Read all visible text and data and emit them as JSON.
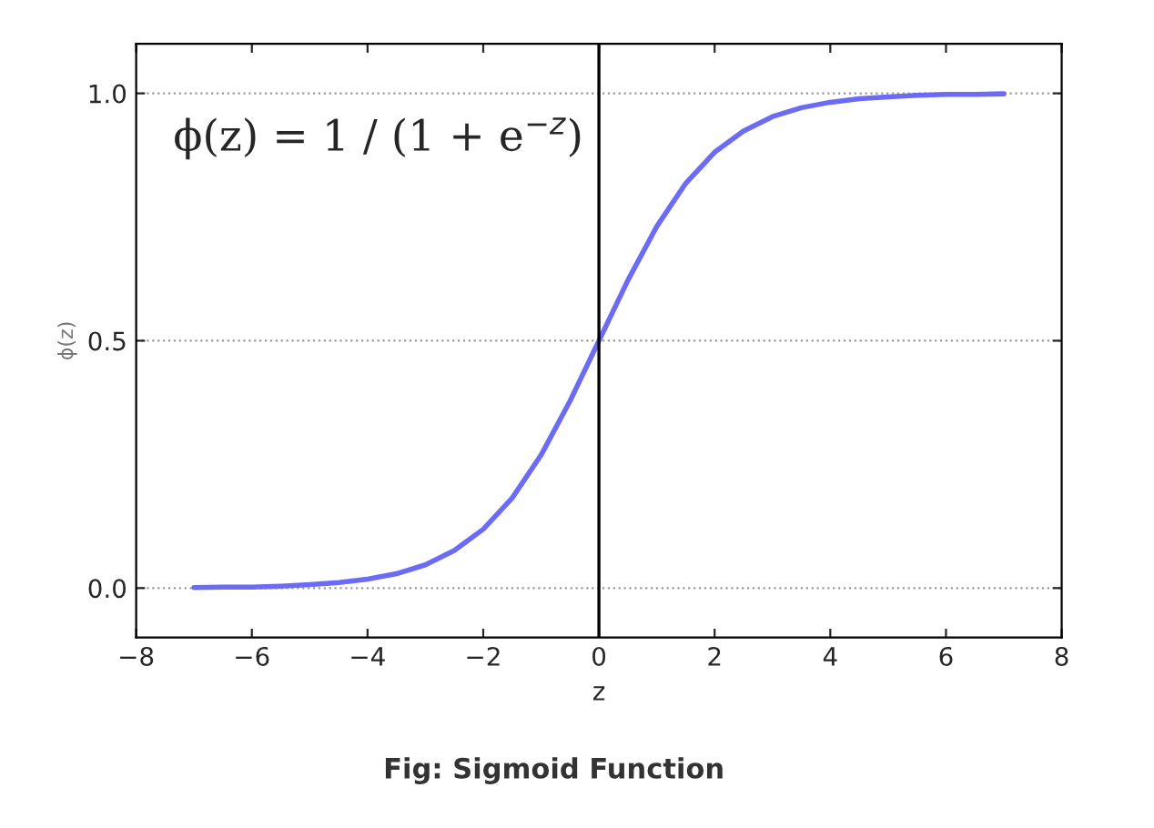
{
  "chart_data": {
    "type": "line",
    "xlabel": "z",
    "ylabel": "ϕ(z)",
    "annotations": [
      "ϕ(z) = 1 / (1 + e$^{−z}$)",
      "Fig: Sigmoid Function"
    ],
    "x": [
      -7,
      -6.5,
      -6,
      -5.5,
      -5,
      -4.5,
      -4,
      -3.5,
      -3,
      -2.5,
      -2,
      -1.5,
      -1,
      -0.5,
      0,
      0.5,
      1,
      1.5,
      2,
      2.5,
      3,
      3.5,
      4,
      4.5,
      5,
      5.5,
      6,
      6.5,
      7
    ],
    "series": [
      {
        "color": "#6b6bf5",
        "values": [
          0.001,
          0.002,
          0.002,
          0.004,
          0.007,
          0.011,
          0.018,
          0.029,
          0.047,
          0.076,
          0.119,
          0.182,
          0.269,
          0.378,
          0.5,
          0.622,
          0.731,
          0.818,
          0.881,
          0.924,
          0.953,
          0.971,
          0.982,
          0.989,
          0.993,
          0.996,
          0.998,
          0.998,
          0.999
        ]
      }
    ],
    "xlim": [
      -8,
      8
    ],
    "xticks": [
      {
        "value": -8,
        "label": "−8"
      },
      {
        "value": -6,
        "label": "−6"
      },
      {
        "value": -4,
        "label": "−4"
      },
      {
        "value": -2,
        "label": "−2"
      },
      0,
      2,
      4,
      6,
      8
    ],
    "ylim": [
      -0.1,
      1.1
    ],
    "yticks": [
      {
        "value": 0,
        "label": "0.0"
      },
      {
        "value": 0.5,
        "label": "0.5"
      },
      {
        "value": 1,
        "label": "1.0"
      }
    ],
    "ref_lines": [
      {
        "axis": "x",
        "value": 0,
        "color": "#000000",
        "line_style": "solid"
      }
    ],
    "grid": "y",
    "line_style": "solid"
  }
}
